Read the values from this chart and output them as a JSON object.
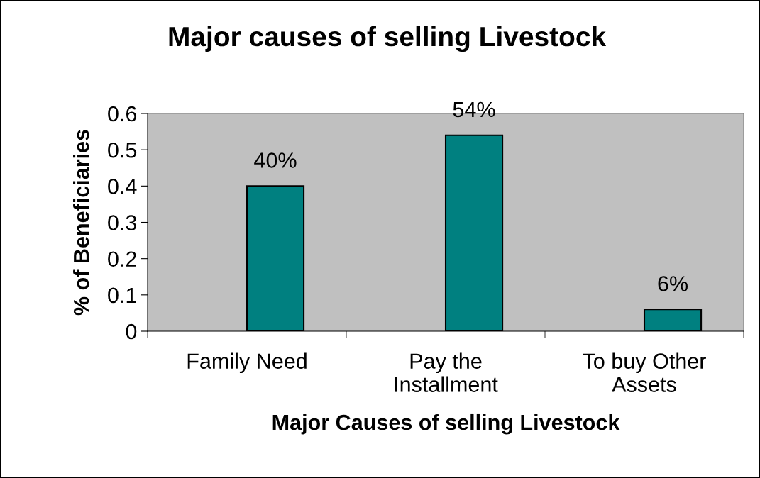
{
  "chart_data": {
    "type": "bar",
    "title": "Major causes of selling Livestock",
    "xlabel": "Major Causes of selling Livestock",
    "ylabel": "% of Beneficiaries",
    "categories": [
      "Family Need",
      "Pay the\nInstallment",
      "To buy Other\nAssets"
    ],
    "values": [
      0.4,
      0.54,
      0.06
    ],
    "value_labels": [
      "40%",
      "54%",
      "6%"
    ],
    "color": "#008080",
    "ylim": [
      0,
      0.6
    ],
    "yticks": [
      0,
      0.1,
      0.2,
      0.3,
      0.4,
      0.5,
      0.6
    ],
    "grid": false,
    "legend": false
  }
}
